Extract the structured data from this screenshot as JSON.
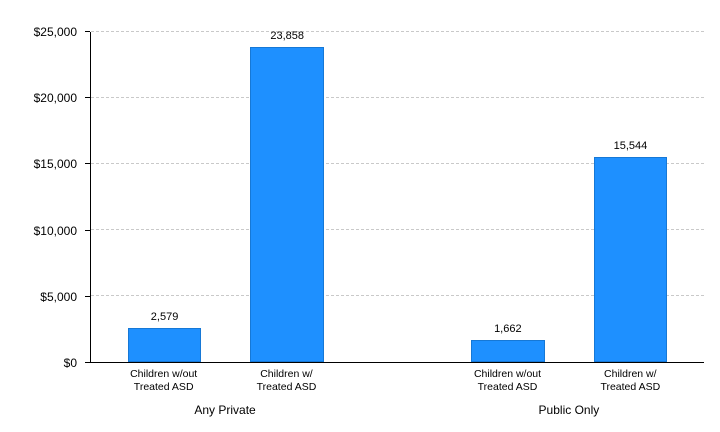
{
  "chart_data": {
    "type": "bar",
    "title": "",
    "xlabel": "",
    "ylabel": "",
    "ylim": [
      0,
      25000
    ],
    "y_ticks": [
      0,
      5000,
      10000,
      15000,
      20000,
      25000
    ],
    "y_tick_labels": [
      "$0",
      "$5,000",
      "$10,000",
      "$15,000",
      "$20,000",
      "$25,000"
    ],
    "grid": "horizontal-dashed",
    "legend": "none",
    "bar_color": "#1e90ff",
    "groups": [
      {
        "label": "Any Private",
        "bars": [
          {
            "category_lines": [
              "Children w/out",
              "Treated ASD"
            ],
            "value": 2579,
            "value_label": "2,579"
          },
          {
            "category_lines": [
              "Children w/",
              "Treated ASD"
            ],
            "value": 23858,
            "value_label": "23,858"
          }
        ]
      },
      {
        "label": "Public Only",
        "bars": [
          {
            "category_lines": [
              "Children w/out",
              "Treated ASD"
            ],
            "value": 1662,
            "value_label": "1,662"
          },
          {
            "category_lines": [
              "Children w/",
              "Treated ASD"
            ],
            "value": 15544,
            "value_label": "15,544"
          }
        ]
      }
    ]
  }
}
